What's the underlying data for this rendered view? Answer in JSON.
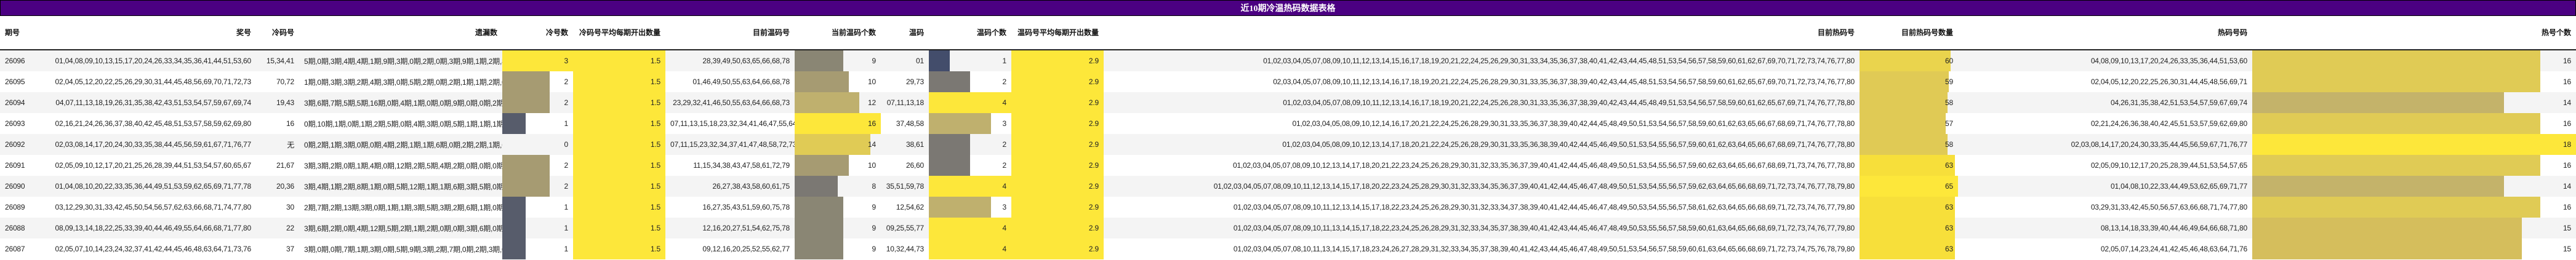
{
  "title": "近10期冷温热码数据表格",
  "headers": {
    "period": "期号",
    "winning": "奖号",
    "cold_nums": "冷码号",
    "misses": "遗漏数",
    "cold_count": "冷号数",
    "cold_avg": "冷码号平均每期开出数量",
    "warm_current": "目前温码号",
    "warm_current_count": "当前温码个数",
    "warm": "温码",
    "warm_count": "温码个数",
    "warm_avg": "温码号平均每期开出数量",
    "hot_current": "目前热码号",
    "hot_current_count": "目前热码号数量",
    "hot": "热码号码",
    "hot_count": "热号个数"
  },
  "colors": {
    "title_bg": "#4b0082",
    "yellow": "#fde73a",
    "khaki": "#a69b72",
    "slate": "#575c6b",
    "gray": "#7b7873",
    "olive": "#bfb06e",
    "gold": "#e0cb55",
    "navy": "#434d6b"
  },
  "rows": [
    {
      "period": "26096",
      "winning": "01,04,08,09,10,13,15,17,20,24,26,33,34,35,36,41,44,51,53,60",
      "cold_nums": "15,34,41",
      "misses": "5期,0期,3期,4期,4期,1期,9期,3期,0期,2期,0期,3期,9期,1期,2期,8期,0期,1期,1期,4期",
      "cold_count": "3",
      "cold_avg": "1.5",
      "warm_current": "28,39,49,50,63,65,66,68,78",
      "warm_current_count": "9",
      "warm": "01",
      "warm_count": "1",
      "warm_avg": "2.9",
      "hot_current": "01,02,03,04,05,07,08,09,10,11,12,13,14,15,16,17,18,19,20,21,22,24,25,26,29,30,31,33,34,35,36,37,38,40,41,42,43,44,45,48,51,53,54,56,57,58,59,60,61,62,67,69,70,71,72,73,74,76,77,80",
      "hot_current_count": "60",
      "hot": "04,08,09,10,13,17,20,24,26,33,35,36,44,51,53,60",
      "hot_count": "16"
    },
    {
      "period": "26095",
      "winning": "02,04,05,12,20,22,25,26,29,30,31,44,45,48,56,69,70,71,72,73",
      "cold_nums": "70,72",
      "misses": "1期,0期,3期,3期,2期,4期,3期,0期,5期,2期,0期,2期,1期,1期,2期,0期,20期,2期,8期,7期",
      "cold_count": "2",
      "cold_avg": "1.5",
      "warm_current": "01,46,49,50,55,63,64,66,68,78",
      "warm_current_count": "10",
      "warm": "29,73",
      "warm_count": "2",
      "warm_avg": "2.9",
      "hot_current": "02,03,04,05,07,08,09,10,11,12,13,14,16,17,18,19,20,21,22,24,25,26,28,29,30,31,33,35,36,37,38,39,40,42,43,44,45,48,51,53,54,56,57,58,59,60,61,62,65,67,69,70,71,72,73,74,76,77,80",
      "hot_current_count": "59",
      "hot": "02,04,05,12,20,22,25,26,30,31,44,45,48,56,69,71",
      "hot_count": "16"
    },
    {
      "period": "26094",
      "winning": "04,07,11,13,18,19,26,31,35,38,42,43,51,53,54,57,59,67,69,74",
      "cold_nums": "19,43",
      "misses": "3期,6期,7期,5期,5期,16期,0期,4期,1期,0期,0期,9期,0期,0期,2期,0期,0期,1期,0期,4期",
      "cold_count": "2",
      "cold_avg": "1.5",
      "warm_current": "23,29,32,41,46,50,55,63,64,66,68,73",
      "warm_current_count": "12",
      "warm": "07,11,13,18",
      "warm_count": "4",
      "warm_avg": "2.9",
      "hot_current": "01,02,03,04,05,07,08,09,10,11,12,13,14,16,17,18,19,20,21,22,24,25,26,28,30,31,33,35,36,37,38,39,40,42,43,44,45,48,49,51,53,54,56,57,58,59,60,61,62,65,67,69,71,74,76,77,78,80",
      "hot_current_count": "58",
      "hot": "04,26,31,35,38,42,51,53,54,57,59,67,69,74",
      "hot_count": "14"
    },
    {
      "period": "26093",
      "winning": "02,16,21,24,26,36,37,38,40,42,45,48,51,53,57,58,59,62,69,80",
      "cold_nums": "16",
      "misses": "0期,10期,1期,0期,1期,2期,5期,0期,4期,3期,0期,5期,1期,1期,1期,7期,0期,2期,2期,3期",
      "cold_count": "1",
      "cold_avg": "1.5",
      "warm_current": "07,11,13,15,18,23,32,34,41,46,47,55,64,72,73,79",
      "warm_current_count": "16",
      "warm": "37,48,58",
      "warm_count": "3",
      "warm_avg": "2.9",
      "hot_current": "01,02,03,04,05,08,09,10,12,14,16,17,20,21,22,24,25,26,28,29,30,31,33,35,36,37,38,39,40,42,44,45,48,49,50,51,53,54,56,57,58,59,60,61,62,63,65,66,67,68,69,71,74,76,77,78,80",
      "hot_current_count": "57",
      "hot": "02,21,24,26,36,38,40,42,45,51,53,57,59,62,69,80",
      "hot_count": "16"
    },
    {
      "period": "26092",
      "winning": "02,03,08,14,17,20,24,30,33,35,38,44,45,56,59,61,67,71,76,77",
      "cold_nums": "无",
      "misses": "0期,2期,1期,3期,0期,0期,4期,2期,1期,1期,6期,0期,2期,2期,1期,6期,0期,1期,4期,1期",
      "cold_count": "0",
      "cold_avg": "1.5",
      "warm_current": "07,11,15,23,32,34,37,41,47,48,58,72,73,79",
      "warm_current_count": "14",
      "warm": "38,61",
      "warm_count": "2",
      "warm_avg": "2.9",
      "hot_current": "01,02,03,04,05,08,09,10,12,13,14,17,18,20,21,22,24,25,26,28,29,30,31,33,35,36,38,39,40,42,44,45,46,49,50,51,53,54,55,56,57,59,60,61,62,63,64,65,66,67,68,69,71,74,76,77,78,80",
      "hot_current_count": "58",
      "hot": "02,03,08,14,17,20,24,30,33,35,44,45,56,59,67,71,76,77",
      "hot_count": "18"
    },
    {
      "period": "26091",
      "winning": "02,05,09,10,12,17,20,21,25,26,28,39,44,51,53,54,57,60,65,67",
      "cold_nums": "21,67",
      "misses": "3期,3期,2期,0期,1期,4期,0期,12期,2期,5期,4期,2期,0期,0期,0期,1期,1期,6期,0期,12期",
      "cold_count": "2",
      "cold_avg": "1.5",
      "warm_current": "11,15,34,38,43,47,58,61,72,79",
      "warm_current_count": "10",
      "warm": "26,60",
      "warm_count": "2",
      "warm_avg": "2.9",
      "hot_current": "01,02,03,04,05,07,08,09,10,12,13,14,17,18,20,21,22,23,24,25,26,28,29,30,31,32,33,35,36,37,39,40,41,42,44,45,46,48,49,50,51,53,54,55,56,57,59,60,62,63,64,65,66,67,68,69,71,73,74,76,77,78,80",
      "hot_current_count": "63",
      "hot": "02,05,09,10,12,17,20,25,28,39,44,51,53,54,57,65",
      "hot_count": "16"
    },
    {
      "period": "26090",
      "winning": "01,04,08,10,20,22,33,35,36,44,49,51,53,59,62,65,69,71,77,78",
      "cold_nums": "20,36",
      "misses": "3期,4期,1期,2期,8期,1期,0期,5期,12期,1期,1期,6期,3期,5期,0期,4期,4期,0期,0期,6期",
      "cold_count": "2",
      "cold_avg": "1.5",
      "warm_current": "26,27,38,43,58,60,61,75",
      "warm_current_count": "8",
      "warm": "35,51,59,78",
      "warm_count": "4",
      "warm_avg": "2.9",
      "hot_current": "01,02,03,04,05,07,08,09,10,11,12,13,14,15,17,18,20,22,23,24,25,28,29,30,31,32,33,34,35,36,37,39,40,41,42,44,45,46,47,48,49,50,51,53,54,55,56,57,59,62,63,64,65,66,68,69,71,72,73,74,76,77,78,79,80",
      "hot_current_count": "65",
      "hot": "01,04,08,10,22,33,44,49,53,62,65,69,71,77",
      "hot_count": "14"
    },
    {
      "period": "26089",
      "winning": "03,12,29,30,31,33,42,45,50,54,56,57,62,63,66,68,71,74,77,80",
      "cold_nums": "30",
      "misses": "2期,7期,2期,13期,3期,0期,1期,1期,3期,5期,3期,2期,6期,1期,0期,0期,0期,4期,0期,0期",
      "cold_count": "1",
      "cold_avg": "1.5",
      "warm_current": "16,27,35,43,51,59,60,75,78",
      "warm_current_count": "9",
      "warm": "12,54,62",
      "warm_count": "3",
      "warm_avg": "2.9",
      "hot_current": "01,02,03,04,05,07,08,09,10,11,12,13,14,15,17,18,22,23,24,25,26,28,29,30,31,32,33,34,37,38,39,40,41,42,44,45,46,47,48,49,50,53,54,55,56,57,58,61,62,63,64,65,66,68,69,71,72,73,74,76,77,79,80",
      "hot_current_count": "63",
      "hot": "03,29,31,33,42,45,50,56,57,63,66,68,71,74,77,80",
      "hot_count": "16"
    },
    {
      "period": "26088",
      "winning": "08,09,13,14,18,22,25,33,39,40,44,46,49,55,64,66,68,71,77,80",
      "cold_nums": "22",
      "misses": "3期,6期,2期,0期,4期,12期,5期,2期,1期,2期,0期,0期,3期,6期,0期,1期,4期,0期,5期,3期",
      "cold_count": "1",
      "cold_avg": "1.5",
      "warm_current": "12,16,20,27,51,54,62,75,78",
      "warm_current_count": "9",
      "warm": "09,25,55,77",
      "warm_count": "4",
      "warm_avg": "2.9",
      "hot_current": "01,02,03,04,05,07,08,09,10,11,13,14,15,17,18,22,23,24,25,26,28,29,31,32,33,34,35,37,38,39,40,41,42,43,44,45,46,47,48,49,50,53,55,56,57,58,59,60,61,63,64,65,66,68,69,71,72,73,74,76,77,79,80",
      "hot_current_count": "63",
      "hot": "08,13,14,18,33,39,40,44,46,49,64,66,68,71,80",
      "hot_count": "15"
    },
    {
      "period": "26087",
      "winning": "02,05,07,10,14,23,24,32,37,41,42,44,45,46,48,63,64,71,73,76",
      "cold_nums": "37",
      "misses": "3期,0期,0期,7期,1期,3期,0期,5期,9期,3期,2期,7期,0期,2期,3期,0期,4期,2期,7期,4期",
      "cold_count": "1",
      "cold_avg": "1.5",
      "warm_current": "09,12,16,20,25,52,55,62,77",
      "warm_current_count": "9",
      "warm": "10,32,44,73",
      "warm_count": "4",
      "warm_avg": "2.9",
      "hot_current": "01,02,03,04,05,07,08,10,11,13,14,15,17,18,23,24,26,27,28,29,31,32,33,34,35,37,38,39,40,41,42,43,44,45,46,47,48,49,50,51,53,54,56,57,58,59,60,61,63,64,65,66,68,69,71,72,73,74,75,76,78,79,80",
      "hot_current_count": "63",
      "hot": "02,05,07,14,23,24,41,42,45,46,48,63,64,71,76",
      "hot_count": "15"
    }
  ]
}
